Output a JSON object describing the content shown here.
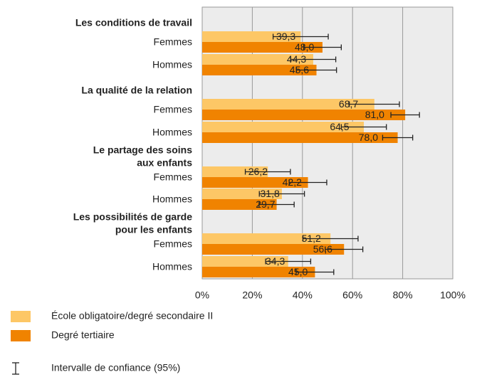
{
  "chart_data": {
    "type": "bar",
    "orientation": "horizontal",
    "groups": [
      [
        "Les conditions de travail"
      ],
      [
        "La qualité de la relation"
      ],
      [
        "Le partage des soins",
        "aux enfants"
      ],
      [
        "Les possibilités de garde",
        "pour les enfants"
      ]
    ],
    "categories": [
      "Femmes",
      "Hommes",
      "Femmes",
      "Hommes",
      "Femmes",
      "Hommes",
      "Femmes",
      "Hommes"
    ],
    "series": [
      {
        "name": "École obligatoire/degré secondaire II",
        "color": "#fdc766",
        "values": [
          39.3,
          44.3,
          68.7,
          64.5,
          26.2,
          31.8,
          51.2,
          34.3
        ],
        "value_labels": [
          "39,3",
          "44,3",
          "68,7",
          "64,5",
          "26,2",
          "31,8",
          "51,2",
          "34,3"
        ],
        "errors": [
          11,
          9,
          10,
          9,
          9,
          9,
          11,
          9
        ]
      },
      {
        "name": "Degré tertiaire",
        "color": "#f08300",
        "values": [
          48.0,
          45.6,
          81.0,
          78.0,
          42.2,
          29.7,
          56.6,
          45.0
        ],
        "value_labels": [
          "48,0",
          "45,6",
          "81,0",
          "78,0",
          "42,2",
          "29,7",
          "56,6",
          "45,0"
        ],
        "errors": [
          7.5,
          8,
          5.7,
          6,
          7.5,
          7,
          7.5,
          7.5
        ]
      }
    ],
    "xlim": [
      0,
      100
    ],
    "xticks": [
      {
        "value": 0,
        "label": "0%"
      },
      {
        "value": 20,
        "label": "20%"
      },
      {
        "value": 40,
        "label": "40%"
      },
      {
        "value": 60,
        "label": "60%"
      },
      {
        "value": 80,
        "label": "80%"
      },
      {
        "value": 100,
        "label": "100%"
      }
    ],
    "grid": true,
    "ci_label": "Intervalle de confiance (95%)"
  }
}
